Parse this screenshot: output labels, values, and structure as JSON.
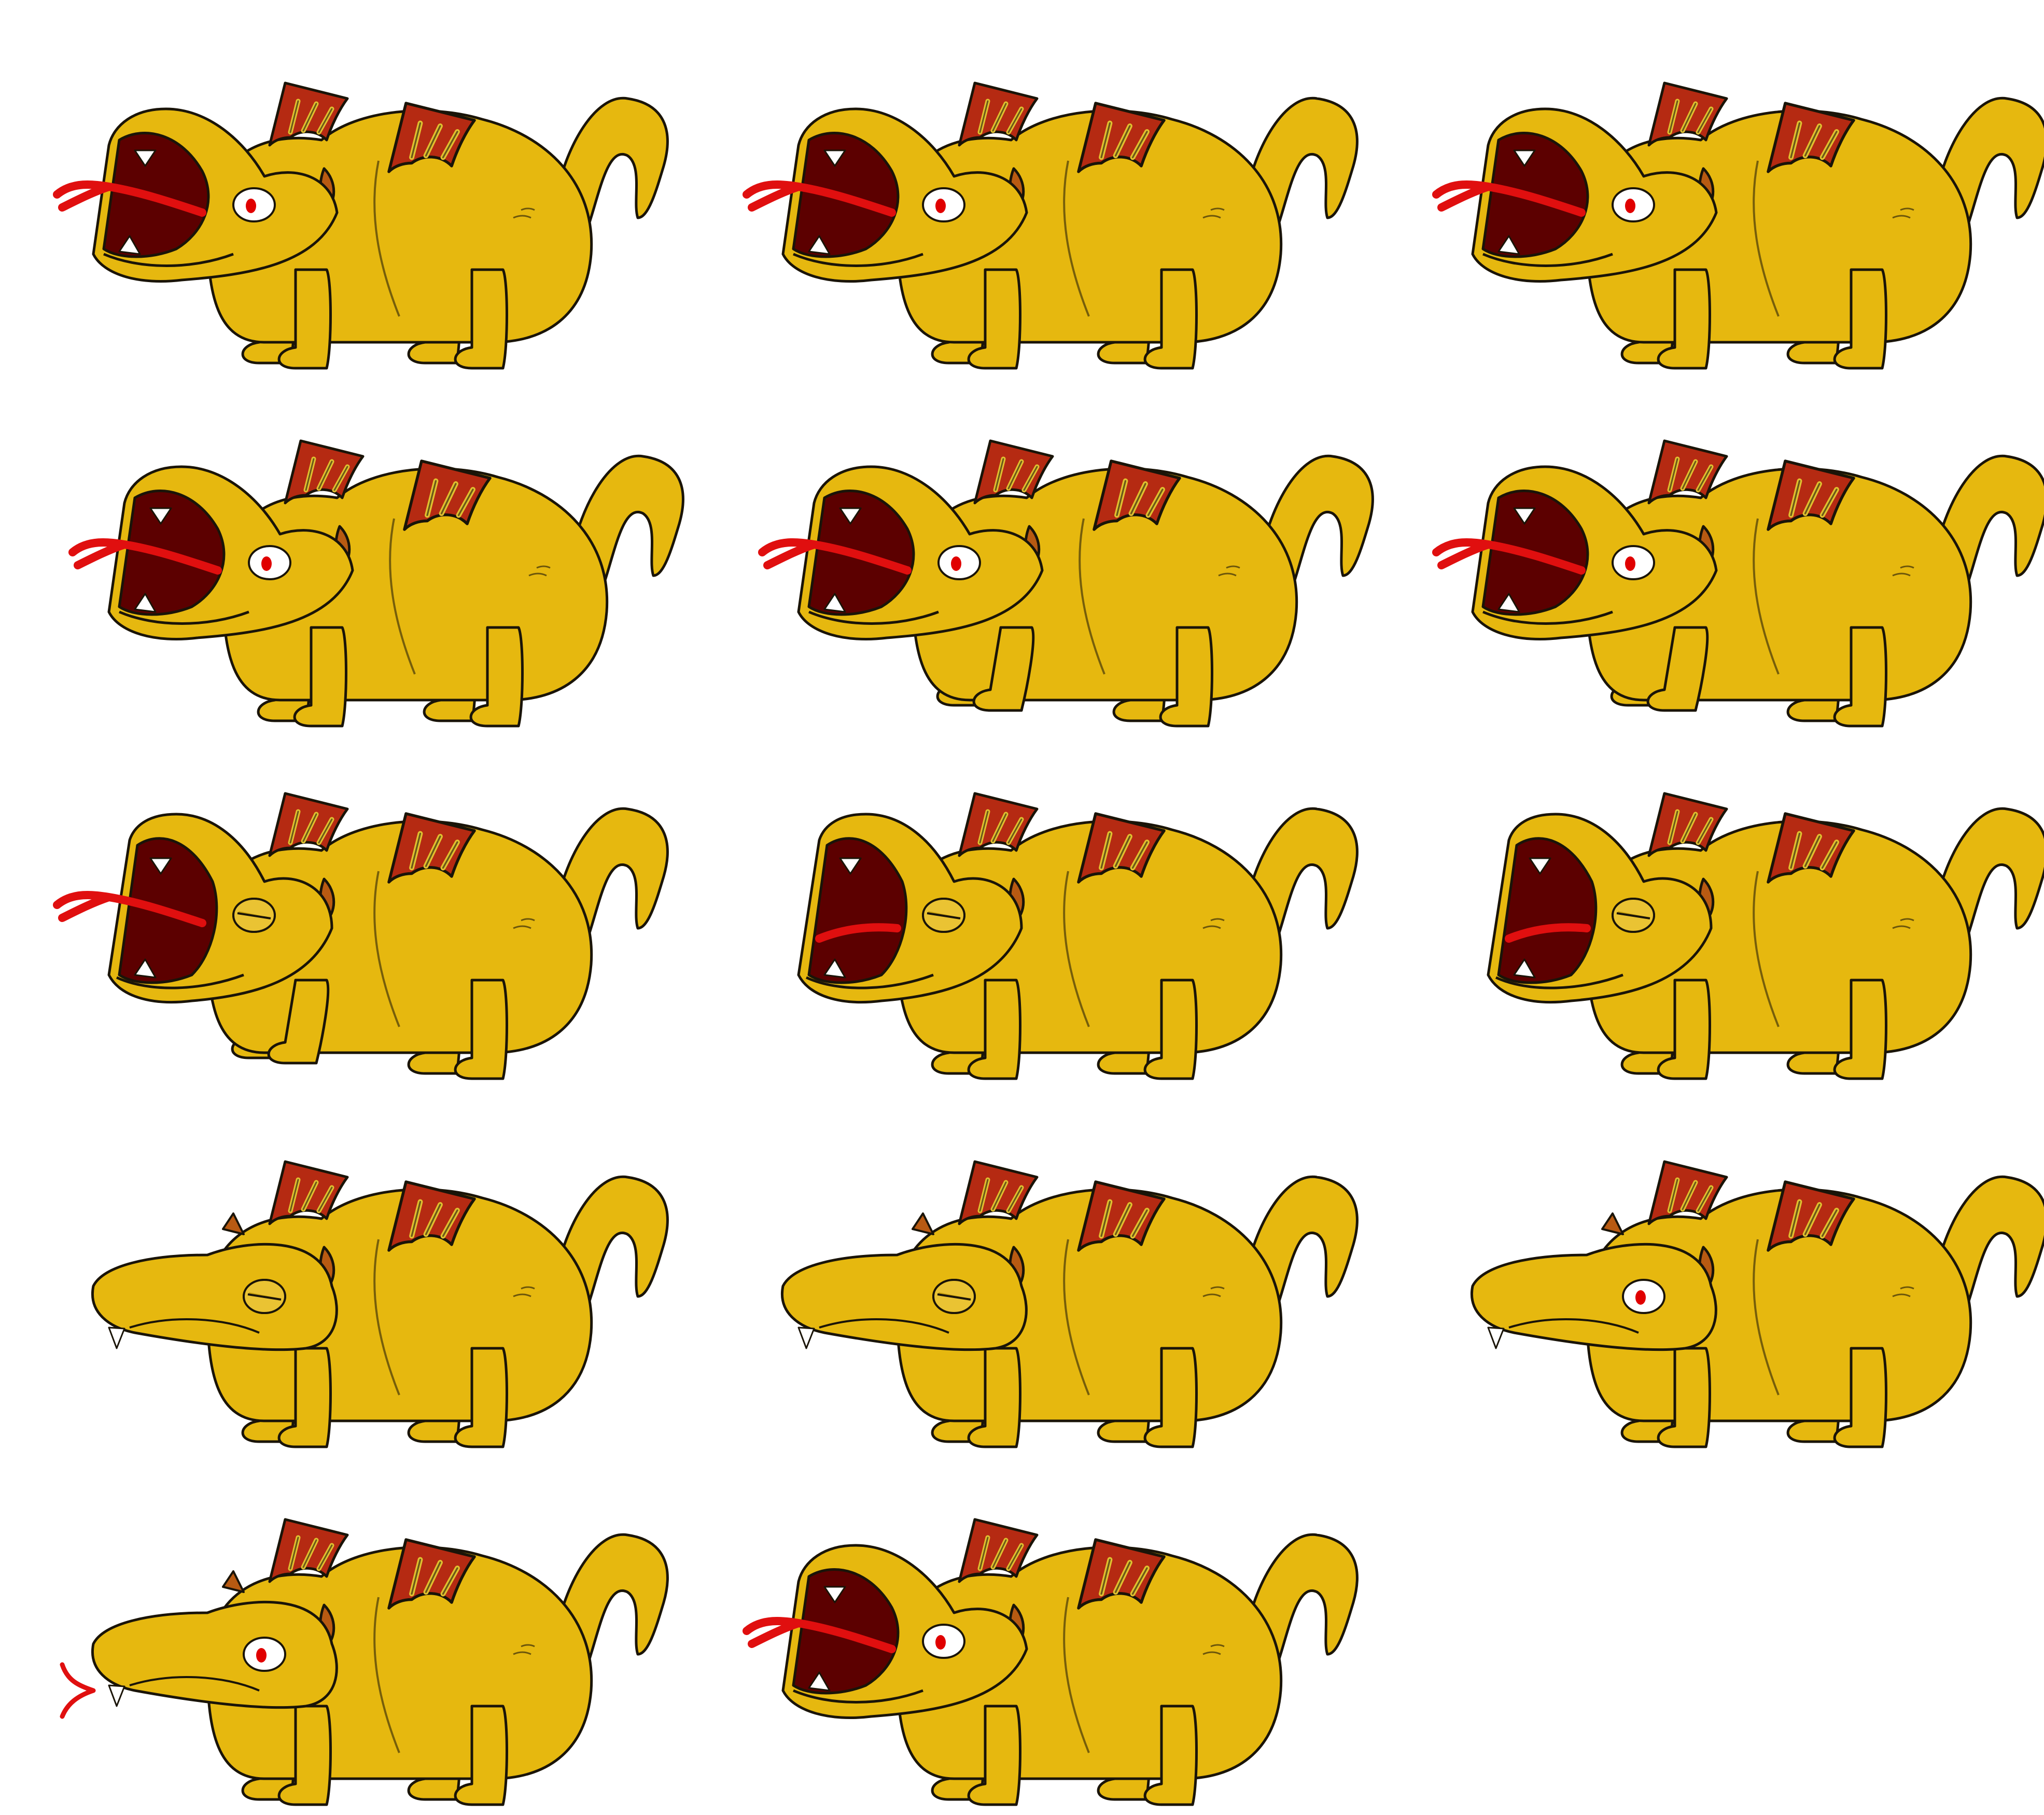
{
  "sprite_sheet": {
    "background_color": "#ffffff",
    "colors": {
      "body": "#e6b80f",
      "outline": "#1a1408",
      "belly_line": "#8a6d08",
      "mouth": "#5c0000",
      "tongue": "#e00f0f",
      "wing_outer": "#b52a12",
      "wing_inner": "#e0c030",
      "horn": "#b85a12",
      "eye_white": "#ffffff",
      "pupil": "#e00000",
      "tooth": "#ffffff"
    },
    "frames": [
      {
        "pose": "roar",
        "eye": "open",
        "tongue": "out",
        "legs": "stand"
      },
      {
        "pose": "roar",
        "eye": "open",
        "tongue": "out",
        "legs": "stand"
      },
      {
        "pose": "roar",
        "eye": "open",
        "tongue": "out",
        "legs": "stand"
      },
      {
        "pose": "roar",
        "eye": "open",
        "tongue": "out",
        "legs": "stand"
      },
      {
        "pose": "roar",
        "eye": "open",
        "tongue": "out",
        "legs": "leap"
      },
      {
        "pose": "roar",
        "eye": "open",
        "tongue": "out",
        "legs": "leap"
      },
      {
        "pose": "roar-wide",
        "eye": "closed",
        "tongue": "out",
        "legs": "leap"
      },
      {
        "pose": "roar-wide",
        "eye": "closed",
        "tongue": "in",
        "legs": "stand"
      },
      {
        "pose": "roar-wide",
        "eye": "closed",
        "tongue": "in",
        "legs": "stand"
      },
      {
        "pose": "closed",
        "eye": "closed",
        "tongue": "none",
        "legs": "stand"
      },
      {
        "pose": "closed",
        "eye": "closed",
        "tongue": "none",
        "legs": "stand"
      },
      {
        "pose": "closed",
        "eye": "open",
        "tongue": "none",
        "legs": "stand"
      },
      {
        "pose": "closed",
        "eye": "open",
        "tongue": "flick",
        "legs": "stand"
      },
      {
        "pose": "roar",
        "eye": "open",
        "tongue": "out",
        "legs": "stand"
      }
    ]
  }
}
